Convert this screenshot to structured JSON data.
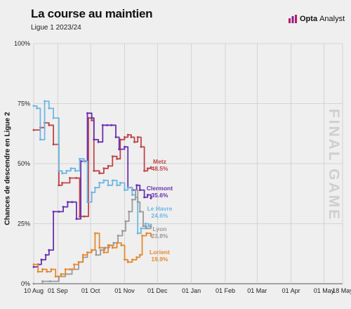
{
  "header": {
    "title": "La course au maintien",
    "subtitle": "Ligue 1 2023/24"
  },
  "brand": {
    "bold": "Opta",
    "rest": "Analyst",
    "icon": "opta-analyst-logo-icon"
  },
  "annotation": {
    "final_game": "FINAL GAME"
  },
  "chart_data": {
    "type": "line",
    "title": "La course au maintien",
    "subtitle": "Ligue 1 2023/24",
    "ylabel": "Chances de descendre en Ligue 2",
    "xlabel": "",
    "ylim": [
      0,
      100
    ],
    "xlim": [
      "2023-08-10",
      "2024-05-18"
    ],
    "y_ticks": [
      0,
      25,
      50,
      75,
      100
    ],
    "y_tick_labels": [
      "0%",
      "25%",
      "50%",
      "75%",
      "100%"
    ],
    "x_ticks": [
      "2023-08-10",
      "2023-09-01",
      "2023-10-01",
      "2023-11-01",
      "2023-12-01",
      "2024-01-01",
      "2024-02-01",
      "2024-03-01",
      "2024-04-01",
      "2024-05-01",
      "2024-05-18"
    ],
    "x_tick_labels": [
      "10 Aug",
      "01 Sep",
      "01 Oct",
      "01 Nov",
      "01 Dec",
      "01 Jan",
      "01 Feb",
      "01 Mar",
      "01 Apr",
      "01 May",
      "18 May"
    ],
    "grid": true,
    "series": [
      {
        "name": "Metz",
        "end_label": "48.5%",
        "color": "#c0444a",
        "points": [
          [
            "2023-08-10",
            64
          ],
          [
            "2023-08-16",
            65
          ],
          [
            "2023-08-20",
            67
          ],
          [
            "2023-08-24",
            66
          ],
          [
            "2023-08-28",
            58
          ],
          [
            "2023-09-02",
            41
          ],
          [
            "2023-09-05",
            42
          ],
          [
            "2023-09-12",
            44
          ],
          [
            "2023-09-18",
            44
          ],
          [
            "2023-09-21",
            28
          ],
          [
            "2023-09-25",
            28
          ],
          [
            "2023-09-29",
            69
          ],
          [
            "2023-10-02",
            68
          ],
          [
            "2023-10-04",
            47
          ],
          [
            "2023-10-09",
            46
          ],
          [
            "2023-10-13",
            48
          ],
          [
            "2023-10-17",
            49
          ],
          [
            "2023-10-21",
            53
          ],
          [
            "2023-10-25",
            52
          ],
          [
            "2023-10-28",
            60
          ],
          [
            "2023-11-01",
            61
          ],
          [
            "2023-11-04",
            62
          ],
          [
            "2023-11-07",
            61
          ],
          [
            "2023-11-10",
            59
          ],
          [
            "2023-11-13",
            61
          ],
          [
            "2023-11-16",
            57
          ],
          [
            "2023-11-19",
            47
          ],
          [
            "2023-11-22",
            48
          ],
          [
            "2023-11-25",
            48.5
          ]
        ]
      },
      {
        "name": "Clermont",
        "end_label": "35.6%",
        "color": "#6a2fb0",
        "points": [
          [
            "2023-08-10",
            7
          ],
          [
            "2023-08-14",
            8
          ],
          [
            "2023-08-17",
            10
          ],
          [
            "2023-08-21",
            12
          ],
          [
            "2023-08-24",
            14
          ],
          [
            "2023-08-28",
            30
          ],
          [
            "2023-09-02",
            30
          ],
          [
            "2023-09-06",
            32
          ],
          [
            "2023-09-10",
            34
          ],
          [
            "2023-09-14",
            34
          ],
          [
            "2023-09-18",
            27
          ],
          [
            "2023-09-22",
            51
          ],
          [
            "2023-09-26",
            51
          ],
          [
            "2023-09-28",
            71
          ],
          [
            "2023-10-02",
            69
          ],
          [
            "2023-10-04",
            60
          ],
          [
            "2023-10-08",
            59
          ],
          [
            "2023-10-12",
            66
          ],
          [
            "2023-10-16",
            66
          ],
          [
            "2023-10-20",
            66
          ],
          [
            "2023-10-24",
            61
          ],
          [
            "2023-10-27",
            56
          ],
          [
            "2023-11-01",
            57
          ],
          [
            "2023-11-04",
            40
          ],
          [
            "2023-11-08",
            39
          ],
          [
            "2023-11-12",
            41
          ],
          [
            "2023-11-15",
            39
          ],
          [
            "2023-11-19",
            36
          ],
          [
            "2023-11-22",
            37
          ],
          [
            "2023-11-25",
            35.6
          ]
        ]
      },
      {
        "name": "Le Havre",
        "end_label": "24.6%",
        "color": "#70b7e3",
        "points": [
          [
            "2023-08-10",
            74
          ],
          [
            "2023-08-13",
            73
          ],
          [
            "2023-08-16",
            60
          ],
          [
            "2023-08-20",
            76
          ],
          [
            "2023-08-24",
            73
          ],
          [
            "2023-08-28",
            69
          ],
          [
            "2023-09-02",
            47
          ],
          [
            "2023-09-05",
            46
          ],
          [
            "2023-09-09",
            47
          ],
          [
            "2023-09-13",
            48
          ],
          [
            "2023-09-17",
            47
          ],
          [
            "2023-09-21",
            52
          ],
          [
            "2023-09-25",
            51
          ],
          [
            "2023-09-28",
            34
          ],
          [
            "2023-10-02",
            38
          ],
          [
            "2023-10-05",
            40
          ],
          [
            "2023-10-09",
            42
          ],
          [
            "2023-10-13",
            43
          ],
          [
            "2023-10-17",
            41
          ],
          [
            "2023-10-21",
            43
          ],
          [
            "2023-10-25",
            41
          ],
          [
            "2023-10-28",
            42
          ],
          [
            "2023-11-01",
            39
          ],
          [
            "2023-11-04",
            40
          ],
          [
            "2023-11-08",
            37
          ],
          [
            "2023-11-11",
            36
          ],
          [
            "2023-11-13",
            21
          ],
          [
            "2023-11-16",
            23
          ],
          [
            "2023-11-20",
            25
          ],
          [
            "2023-11-23",
            24
          ],
          [
            "2023-11-25",
            24.6
          ]
        ]
      },
      {
        "name": "Lyon",
        "end_label": "23.8%",
        "color": "#9a9a9a",
        "points": [
          [
            "2023-08-10",
            0
          ],
          [
            "2023-08-18",
            1
          ],
          [
            "2023-08-25",
            1
          ],
          [
            "2023-09-02",
            3
          ],
          [
            "2023-09-08",
            4
          ],
          [
            "2023-09-14",
            6
          ],
          [
            "2023-09-20",
            9
          ],
          [
            "2023-09-24",
            11
          ],
          [
            "2023-09-28",
            13
          ],
          [
            "2023-10-02",
            14
          ],
          [
            "2023-10-06",
            12
          ],
          [
            "2023-10-10",
            14
          ],
          [
            "2023-10-14",
            15
          ],
          [
            "2023-10-18",
            16
          ],
          [
            "2023-10-22",
            17
          ],
          [
            "2023-10-26",
            20
          ],
          [
            "2023-10-30",
            22
          ],
          [
            "2023-11-02",
            26
          ],
          [
            "2023-11-05",
            30
          ],
          [
            "2023-11-08",
            35
          ],
          [
            "2023-11-11",
            39
          ],
          [
            "2023-11-13",
            34
          ],
          [
            "2023-11-15",
            30
          ],
          [
            "2023-11-18",
            24
          ],
          [
            "2023-11-21",
            23
          ],
          [
            "2023-11-25",
            23.8
          ]
        ]
      },
      {
        "name": "Lorient",
        "end_label": "19.9%",
        "color": "#e5892f",
        "points": [
          [
            "2023-08-10",
            8
          ],
          [
            "2023-08-14",
            5
          ],
          [
            "2023-08-18",
            6
          ],
          [
            "2023-08-22",
            5
          ],
          [
            "2023-08-26",
            6
          ],
          [
            "2023-08-30",
            3
          ],
          [
            "2023-09-04",
            4
          ],
          [
            "2023-09-08",
            6
          ],
          [
            "2023-09-12",
            6
          ],
          [
            "2023-09-16",
            8
          ],
          [
            "2023-09-20",
            9
          ],
          [
            "2023-09-24",
            12
          ],
          [
            "2023-09-28",
            13
          ],
          [
            "2023-10-02",
            14
          ],
          [
            "2023-10-05",
            21
          ],
          [
            "2023-10-09",
            15
          ],
          [
            "2023-10-13",
            13
          ],
          [
            "2023-10-17",
            16
          ],
          [
            "2023-10-21",
            15
          ],
          [
            "2023-10-25",
            17
          ],
          [
            "2023-10-29",
            16
          ],
          [
            "2023-11-01",
            10
          ],
          [
            "2023-11-04",
            9
          ],
          [
            "2023-11-08",
            10
          ],
          [
            "2023-11-12",
            11
          ],
          [
            "2023-11-15",
            12
          ],
          [
            "2023-11-17",
            20
          ],
          [
            "2023-11-21",
            21
          ],
          [
            "2023-11-25",
            19.9
          ]
        ]
      }
    ]
  }
}
